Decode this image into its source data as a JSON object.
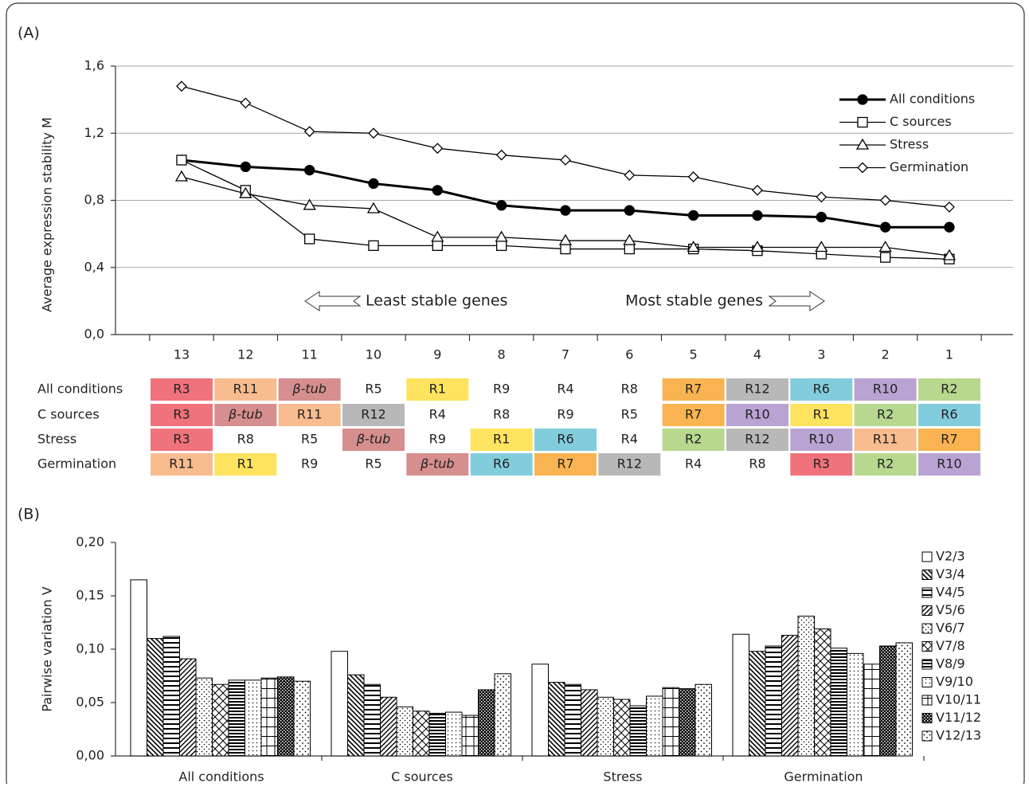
{
  "panels": [
    "(A)",
    "(B)"
  ],
  "chart_data": [
    {
      "type": "line",
      "y_label": "Average expression stability M",
      "categories": [
        "13",
        "12",
        "11",
        "10",
        "9",
        "8",
        "7",
        "6",
        "5",
        "4",
        "3",
        "2",
        "1"
      ],
      "ylim": [
        0,
        1.6
      ],
      "yticks": [
        {
          "value": 0,
          "label": "0,0"
        },
        {
          "value": 0.4,
          "label": "0,4"
        },
        {
          "value": 0.8,
          "label": "0,8"
        },
        {
          "value": 1.2,
          "label": "1,2"
        },
        {
          "value": 1.6,
          "label": "1,6"
        }
      ],
      "grid": true,
      "legend": "top-right",
      "annotations": [
        "Least stable genes",
        "Most stable genes"
      ],
      "series": [
        {
          "name": "All conditions",
          "color": "#000000",
          "marker": "filled-circle",
          "values": [
            1.04,
            1.0,
            0.98,
            0.9,
            0.86,
            0.77,
            0.74,
            0.74,
            0.71,
            0.71,
            0.7,
            0.64,
            0.64
          ]
        },
        {
          "name": "C sources",
          "color": "#000000",
          "marker": "square",
          "values": [
            1.04,
            0.86,
            0.57,
            0.53,
            0.53,
            0.53,
            0.51,
            0.51,
            0.51,
            0.5,
            0.48,
            0.46,
            0.45
          ]
        },
        {
          "name": "Stress",
          "color": "#000000",
          "marker": "triangle",
          "values": [
            0.94,
            0.84,
            0.77,
            0.75,
            0.58,
            0.58,
            0.56,
            0.56,
            0.52,
            0.52,
            0.52,
            0.52,
            0.47
          ]
        },
        {
          "name": "Germination",
          "color": "#000000",
          "marker": "diamond",
          "values": [
            1.48,
            1.38,
            1.21,
            1.2,
            1.11,
            1.07,
            1.04,
            0.95,
            0.94,
            0.86,
            0.82,
            0.8,
            0.76
          ]
        }
      ]
    },
    {
      "type": "bar",
      "y_label": "Pairwise variation V",
      "categories": [
        "All conditions",
        "C sources",
        "Stress",
        "Germination"
      ],
      "ylim": [
        0,
        0.2
      ],
      "yticks": [
        {
          "value": 0,
          "label": "0,00"
        },
        {
          "value": 0.05,
          "label": "0,05"
        },
        {
          "value": 0.1,
          "label": "0,10"
        },
        {
          "value": 0.15,
          "label": "0,15"
        },
        {
          "value": 0.2,
          "label": "0,20"
        }
      ],
      "legend": "right",
      "series": [
        {
          "name": "V2/3",
          "pattern": "blank",
          "values": [
            0.165,
            0.098,
            0.086,
            0.114
          ]
        },
        {
          "name": "V3/4",
          "pattern": "downward-diagonal",
          "values": [
            0.11,
            0.076,
            0.069,
            0.098
          ]
        },
        {
          "name": "V4/5",
          "pattern": "horizontal",
          "values": [
            0.112,
            0.067,
            0.067,
            0.103
          ]
        },
        {
          "name": "V5/6",
          "pattern": "upward-diagonal",
          "values": [
            0.091,
            0.055,
            0.062,
            0.113
          ]
        },
        {
          "name": "V6/7",
          "pattern": "dotted",
          "values": [
            0.073,
            0.046,
            0.055,
            0.131
          ]
        },
        {
          "name": "V7/8",
          "pattern": "diagonal-cross",
          "values": [
            0.067,
            0.042,
            0.053,
            0.119
          ]
        },
        {
          "name": "V8/9",
          "pattern": "dense-horizontal",
          "values": [
            0.071,
            0.04,
            0.047,
            0.101
          ]
        },
        {
          "name": "V9/10",
          "pattern": "small-dots",
          "values": [
            0.071,
            0.041,
            0.056,
            0.096
          ]
        },
        {
          "name": "V10/11",
          "pattern": "grid",
          "values": [
            0.073,
            0.038,
            0.064,
            0.086
          ]
        },
        {
          "name": "V11/12",
          "pattern": "checker",
          "values": [
            0.074,
            0.062,
            0.063,
            0.103
          ]
        },
        {
          "name": "V12/13",
          "pattern": "sparse-dots",
          "values": [
            0.07,
            0.077,
            0.067,
            0.106
          ]
        }
      ]
    }
  ],
  "ranking_table": {
    "gene_colors": {
      "R3": "#f0727b",
      "R11": "#f8bc8f",
      "β-tub": "#d68e8e",
      "R1": "#fde35e",
      "R7": "#f9b451",
      "R12": "#b8b8b8",
      "R6": "#82cddd",
      "R10": "#b9a3d2",
      "R2": "#b8d78f"
    },
    "rows": [
      {
        "label": "All conditions",
        "cells": [
          "R3",
          "R11",
          "β-tub",
          "R5",
          "R1",
          "R9",
          "R4",
          "R8",
          "R7",
          "R12",
          "R6",
          "R10",
          "R2"
        ]
      },
      {
        "label": "C sources",
        "cells": [
          "R3",
          "β-tub",
          "R11",
          "R12",
          "R4",
          "R8",
          "R9",
          "R5",
          "R7",
          "R10",
          "R1",
          "R2",
          "R6"
        ]
      },
      {
        "label": "Stress",
        "cells": [
          "R3",
          "R8",
          "R5",
          "β-tub",
          "R9",
          "R1",
          "R6",
          "R4",
          "R2",
          "R12",
          "R10",
          "R11",
          "R7"
        ]
      },
      {
        "label": "Germination",
        "cells": [
          "R11",
          "R1",
          "R9",
          "R5",
          "β-tub",
          "R6",
          "R7",
          "R12",
          "R4",
          "R8",
          "R3",
          "R2",
          "R10"
        ]
      }
    ]
  }
}
